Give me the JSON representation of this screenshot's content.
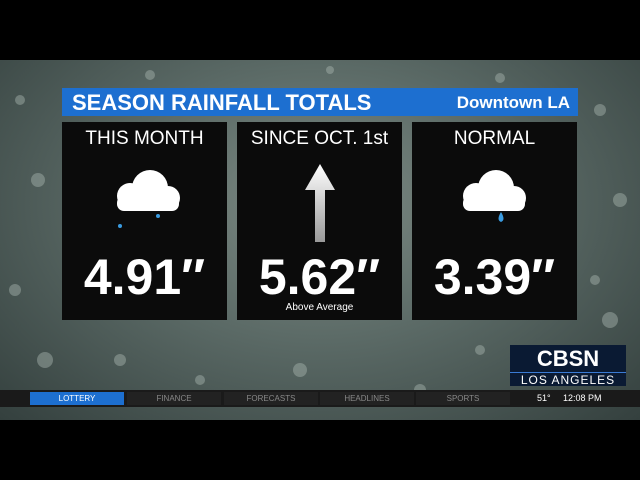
{
  "header": {
    "title": "SEASON RAINFALL TOTALS",
    "location": "Downtown LA"
  },
  "panels": [
    {
      "label": "THIS MONTH",
      "value": "4.91″"
    },
    {
      "label": "SINCE OCT. 1st",
      "value": "5.62″",
      "note": "Above Average"
    },
    {
      "label": "NORMAL",
      "value": "3.39″"
    }
  ],
  "logo": {
    "name": "CBSN",
    "market": "LOS ANGELES"
  },
  "ticker": {
    "items": [
      "LOTTERY",
      "FINANCE",
      "FORECASTS",
      "HEADLINES",
      "SPORTS"
    ],
    "temperature": "51°",
    "time": "12:08 PM"
  }
}
